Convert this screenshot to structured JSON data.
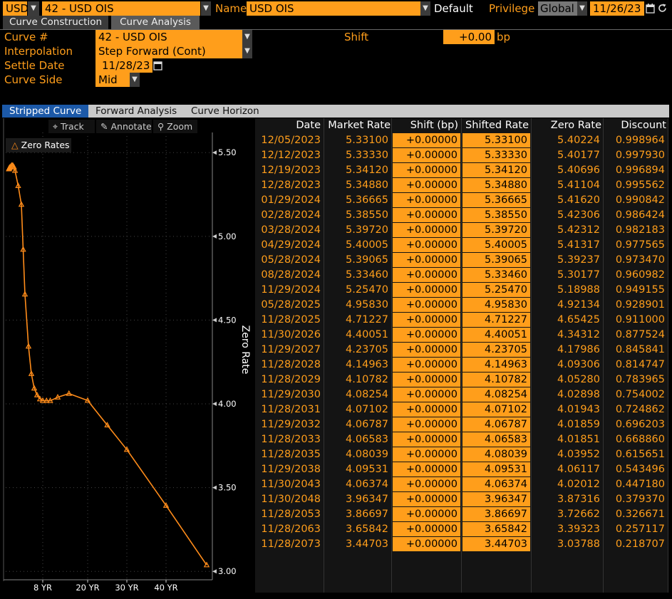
{
  "header": {
    "currency": "USD",
    "curve_id": "42 - USD OIS",
    "name_label": "Name",
    "name_value": "USD OIS",
    "default_label": "Default",
    "privilege_label": "Privilege",
    "privilege_value": "Global",
    "date": "11/26/23"
  },
  "tabs": [
    {
      "label": "Curve Construction"
    },
    {
      "label": "Curve Analysis"
    }
  ],
  "settings": {
    "curve_label": "Curve #",
    "curve_value": "42 - USD OIS",
    "interpolation_label": "Interpolation",
    "interpolation_value": "Step Forward (Cont)",
    "settle_label": "Settle Date",
    "settle_value": "11/28/23",
    "side_label": "Curve Side",
    "side_value": "Mid",
    "shift_label": "Shift",
    "shift_value": "+0.00",
    "shift_unit": "bp"
  },
  "subtabs": [
    {
      "label": "Stripped Curve"
    },
    {
      "label": "Forward Analysis"
    },
    {
      "label": "Curve Horizon"
    }
  ],
  "toolbar": {
    "track": "Track",
    "annotate": "Annotate",
    "zoom": "Zoom"
  },
  "colors": {
    "accent": "#ff9e1b",
    "tab_active": "#5a5a5a",
    "subtab_active": "#1c59a8"
  },
  "table": {
    "headers": [
      "Date",
      "Market Rate",
      "Shift (bp)",
      "Shifted Rate",
      "Zero Rate",
      "Discount"
    ],
    "rows": [
      [
        "12/05/2023",
        "5.33100",
        "+0.00000",
        "5.33100",
        "5.40224",
        "0.998964"
      ],
      [
        "12/12/2023",
        "5.33330",
        "+0.00000",
        "5.33330",
        "5.40177",
        "0.997930"
      ],
      [
        "12/19/2023",
        "5.34120",
        "+0.00000",
        "5.34120",
        "5.40696",
        "0.996894"
      ],
      [
        "12/28/2023",
        "5.34880",
        "+0.00000",
        "5.34880",
        "5.41104",
        "0.995562"
      ],
      [
        "01/29/2024",
        "5.36665",
        "+0.00000",
        "5.36665",
        "5.41620",
        "0.990842"
      ],
      [
        "02/28/2024",
        "5.38550",
        "+0.00000",
        "5.38550",
        "5.42306",
        "0.986424"
      ],
      [
        "03/28/2024",
        "5.39720",
        "+0.00000",
        "5.39720",
        "5.42312",
        "0.982183"
      ],
      [
        "04/29/2024",
        "5.40005",
        "+0.00000",
        "5.40005",
        "5.41317",
        "0.977565"
      ],
      [
        "05/28/2024",
        "5.39065",
        "+0.00000",
        "5.39065",
        "5.39237",
        "0.973470"
      ],
      [
        "08/28/2024",
        "5.33460",
        "+0.00000",
        "5.33460",
        "5.30177",
        "0.960982"
      ],
      [
        "11/29/2024",
        "5.25470",
        "+0.00000",
        "5.25470",
        "5.18988",
        "0.949155"
      ],
      [
        "05/28/2025",
        "4.95830",
        "+0.00000",
        "4.95830",
        "4.92134",
        "0.928901"
      ],
      [
        "11/28/2025",
        "4.71227",
        "+0.00000",
        "4.71227",
        "4.65425",
        "0.911000"
      ],
      [
        "11/30/2026",
        "4.40051",
        "+0.00000",
        "4.40051",
        "4.34312",
        "0.877524"
      ],
      [
        "11/29/2027",
        "4.23705",
        "+0.00000",
        "4.23705",
        "4.17986",
        "0.845841"
      ],
      [
        "11/28/2028",
        "4.14963",
        "+0.00000",
        "4.14963",
        "4.09306",
        "0.814747"
      ],
      [
        "11/28/2029",
        "4.10782",
        "+0.00000",
        "4.10782",
        "4.05280",
        "0.783965"
      ],
      [
        "11/29/2030",
        "4.08254",
        "+0.00000",
        "4.08254",
        "4.02898",
        "0.754002"
      ],
      [
        "11/28/2031",
        "4.07102",
        "+0.00000",
        "4.07102",
        "4.01943",
        "0.724862"
      ],
      [
        "11/29/2032",
        "4.06787",
        "+0.00000",
        "4.06787",
        "4.01859",
        "0.696203"
      ],
      [
        "11/28/2033",
        "4.06583",
        "+0.00000",
        "4.06583",
        "4.01851",
        "0.668860"
      ],
      [
        "11/28/2035",
        "4.08039",
        "+0.00000",
        "4.08039",
        "4.03952",
        "0.615651"
      ],
      [
        "11/29/2038",
        "4.09531",
        "+0.00000",
        "4.09531",
        "4.06117",
        "0.543496"
      ],
      [
        "11/30/2043",
        "4.06374",
        "+0.00000",
        "4.06374",
        "4.02012",
        "0.447180"
      ],
      [
        "11/30/2048",
        "3.96347",
        "+0.00000",
        "3.96347",
        "3.87316",
        "0.379370"
      ],
      [
        "11/28/2053",
        "3.86697",
        "+0.00000",
        "3.86697",
        "3.72662",
        "0.326671"
      ],
      [
        "11/28/2063",
        "3.65842",
        "+0.00000",
        "3.65842",
        "3.39323",
        "0.257117"
      ],
      [
        "11/28/2073",
        "3.44703",
        "+0.00000",
        "3.44703",
        "3.03788",
        "0.218707"
      ]
    ]
  },
  "chart_data": {
    "type": "line",
    "legend": "Zero Rates",
    "legend_position": "top-left",
    "ylabel": "Zero Rate",
    "ylim": [
      2.95,
      5.62
    ],
    "yticks": [
      "5.50",
      "5.00",
      "4.50",
      "4.00",
      "3.50",
      "3.00"
    ],
    "xlim": [
      0,
      51
    ],
    "xticks": [
      "8 YR",
      "20 YR",
      "30 YR",
      "40 YR"
    ],
    "xtick_values": [
      8,
      20,
      30,
      40
    ],
    "series": [
      {
        "name": "Zero Rates",
        "x": [
          0.019,
          0.038,
          0.058,
          0.082,
          0.17,
          0.25,
          0.33,
          0.42,
          0.5,
          0.75,
          1.0,
          1.5,
          2.0,
          3.0,
          4.0,
          5.0,
          6.0,
          7.0,
          8.0,
          9.0,
          10.0,
          12.0,
          15.0,
          20.0,
          25.0,
          30.0,
          40.0,
          50.0
        ],
        "y": [
          5.40224,
          5.40177,
          5.40696,
          5.41104,
          5.4162,
          5.42306,
          5.42312,
          5.41317,
          5.39237,
          5.30177,
          5.18988,
          4.92134,
          4.65425,
          4.34312,
          4.17986,
          4.09306,
          4.0528,
          4.02898,
          4.01943,
          4.01859,
          4.01851,
          4.03952,
          4.06117,
          4.02012,
          3.87316,
          3.72662,
          3.39323,
          3.03788
        ]
      }
    ]
  }
}
